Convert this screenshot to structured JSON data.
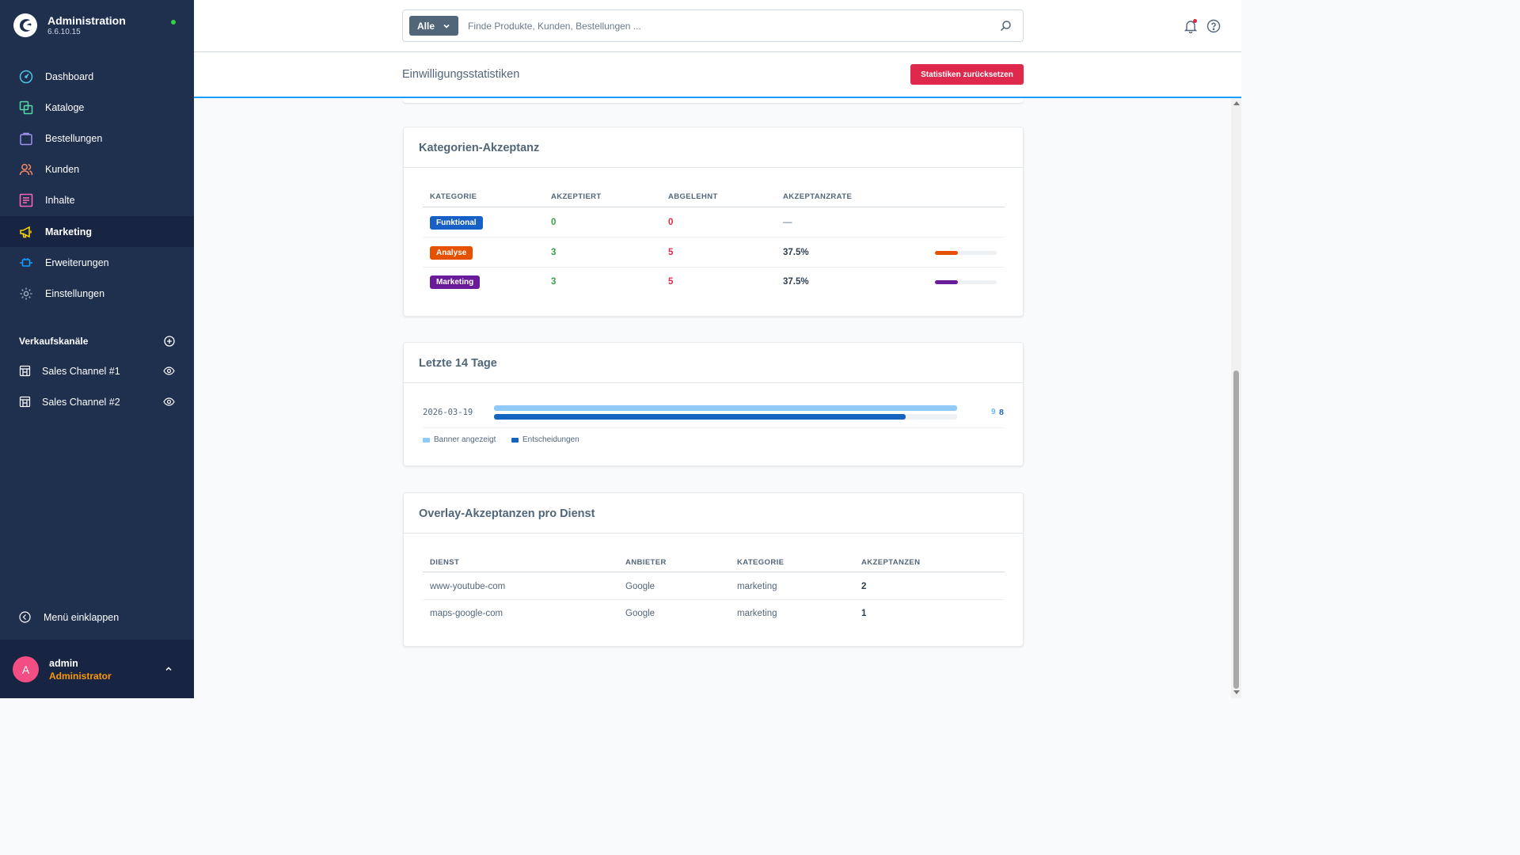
{
  "app": {
    "title": "Administration",
    "version": "6.6.10.15",
    "colors": {
      "sidebar": "#1f2f4e",
      "sidebar_active": "#172542",
      "accent": "#189eff",
      "danger": "#de294c",
      "success": "#37a145"
    }
  },
  "nav": {
    "items": [
      {
        "label": "Dashboard",
        "icon": "dashboard-icon",
        "color": "#4fc3e0"
      },
      {
        "label": "Kataloge",
        "icon": "catalog-icon",
        "color": "#57d9a3"
      },
      {
        "label": "Bestellungen",
        "icon": "bag-icon",
        "color": "#a092f0"
      },
      {
        "label": "Kunden",
        "icon": "users-icon",
        "color": "#f88962"
      },
      {
        "label": "Inhalte",
        "icon": "content-icon",
        "color": "#ff68b4"
      },
      {
        "label": "Marketing",
        "icon": "megaphone-icon",
        "color": "#ffd700",
        "active": true
      },
      {
        "label": "Erweiterungen",
        "icon": "plug-icon",
        "color": "#189eff"
      },
      {
        "label": "Einstellungen",
        "icon": "gear-icon",
        "color": "#9aa8b5"
      }
    ],
    "sales_channels_title": "Verkaufskanäle",
    "channels": [
      {
        "label": "Sales Channel #1"
      },
      {
        "label": "Sales Channel #2"
      }
    ],
    "collapse_label": "Menü einklappen"
  },
  "user": {
    "initial": "A",
    "name": "admin",
    "role": "Administrator"
  },
  "search": {
    "type_label": "Alle",
    "placeholder": "Finde Produkte, Kunden, Bestellungen ..."
  },
  "page": {
    "title": "Einwilligungsstatistiken",
    "reset_label": "Statistiken zurücksetzen"
  },
  "category_card": {
    "title": "Kategorien-Akzeptanz",
    "headers": [
      "KATEGORIE",
      "AKZEPTIERT",
      "ABGELEHNT",
      "AKZEPTANZRATE"
    ],
    "rows": [
      {
        "category": "Funktional",
        "color": "#1760c7",
        "accepted": "0",
        "rejected": "0",
        "rate": "—",
        "rate_value": null
      },
      {
        "category": "Analyse",
        "color": "#e65100",
        "accepted": "3",
        "rejected": "5",
        "rate": "37.5%",
        "rate_value": 0.375
      },
      {
        "category": "Marketing",
        "color": "#6a1b9a",
        "accepted": "3",
        "rejected": "5",
        "rate": "37.5%",
        "rate_value": 0.375
      }
    ]
  },
  "days_card": {
    "title": "Letzte 14 Tage",
    "rows": [
      {
        "date": "2026-03-19",
        "shown": 9,
        "decisions": 8,
        "shown_label": "9",
        "decisions_label": "8"
      }
    ],
    "legend": [
      {
        "label": "Banner angezeigt",
        "color": "#90caf9"
      },
      {
        "label": "Entscheidungen",
        "color": "#1565c0"
      }
    ]
  },
  "overlay_card": {
    "title": "Overlay-Akzeptanzen pro Dienst",
    "headers": [
      "DIENST",
      "ANBIETER",
      "KATEGORIE",
      "AKZEPTANZEN"
    ],
    "rows": [
      {
        "service": "www-youtube-com",
        "provider": "Google",
        "category": "marketing",
        "count": "2"
      },
      {
        "service": "maps-google-com",
        "provider": "Google",
        "category": "marketing",
        "count": "1"
      }
    ]
  }
}
